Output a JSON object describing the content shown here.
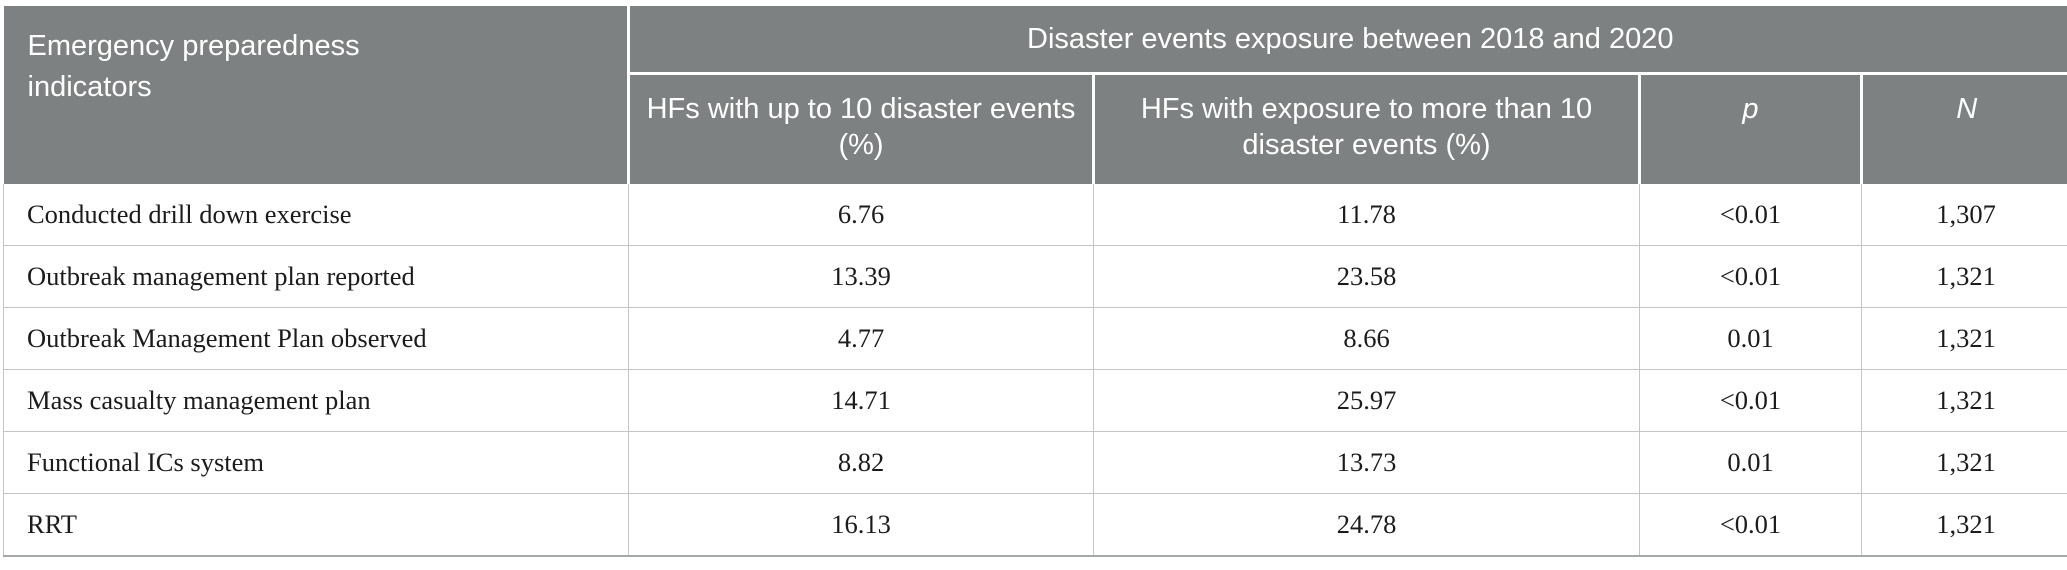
{
  "table": {
    "corner_header": "Emergency preparedness indicators",
    "span_header": "Disaster events exposure between 2018 and 2020",
    "columns": [
      {
        "label": "HFs with up to 10 disaster events (%)"
      },
      {
        "label": "HFs with exposure to more than 10 disaster events (%)"
      },
      {
        "label": "p",
        "italic": true
      },
      {
        "label": "N",
        "italic": true
      }
    ],
    "rows": [
      {
        "indicator": "Conducted drill down exercise",
        "up_to_10_pct": "6.76",
        "more_than_10_pct": "11.78",
        "p": "<0.01",
        "n": "1,307"
      },
      {
        "indicator": "Outbreak management plan reported",
        "up_to_10_pct": "13.39",
        "more_than_10_pct": "23.58",
        "p": "<0.01",
        "n": "1,321"
      },
      {
        "indicator": "Outbreak Management Plan observed",
        "up_to_10_pct": "4.77",
        "more_than_10_pct": "8.66",
        "p": "0.01",
        "n": "1,321"
      },
      {
        "indicator": "Mass casualty management plan",
        "up_to_10_pct": "14.71",
        "more_than_10_pct": "25.97",
        "p": "<0.01",
        "n": "1,321"
      },
      {
        "indicator": "Functional ICs system",
        "up_to_10_pct": "8.82",
        "more_than_10_pct": "13.73",
        "p": "0.01",
        "n": "1,321"
      },
      {
        "indicator": "RRT",
        "up_to_10_pct": "16.13",
        "more_than_10_pct": "24.78",
        "p": "<0.01",
        "n": "1,321"
      }
    ],
    "colors": {
      "header_bg": "#7e8181",
      "header_text": "#ffffff",
      "body_text": "#1b1b1b",
      "grid_line": "#c2c5c5",
      "bottom_border": "#a5a8a8"
    }
  }
}
